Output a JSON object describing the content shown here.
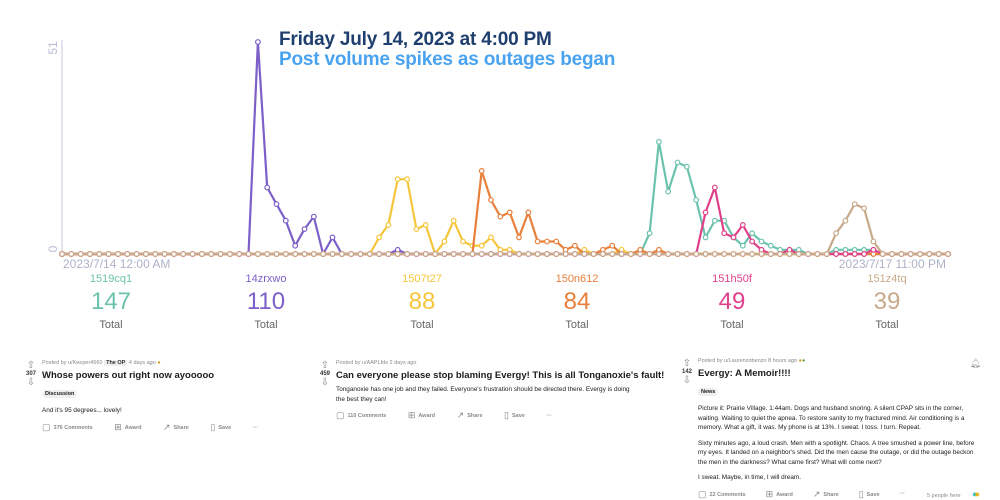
{
  "chart_data": {
    "type": "line",
    "annotation_title": "Friday July 14, 2023 at 4:00 PM",
    "annotation_subtitle": "Post volume spikes as outages began",
    "x_start_label": "2023/7/14 12:00 AM",
    "x_end_label": "2023/7/17 11:00 PM",
    "y_max_label": "51",
    "y_min_label": "0",
    "ylim": [
      0,
      51
    ],
    "grid": false,
    "series": [
      {
        "name": "1519cq1",
        "color": "#6cc3ad",
        "total": "147",
        "values": [
          0,
          0,
          0,
          0,
          0,
          0,
          0,
          0,
          0,
          0,
          0,
          0,
          0,
          0,
          0,
          0,
          0,
          0,
          0,
          0,
          0,
          0,
          0,
          0,
          0,
          0,
          0,
          0,
          0,
          0,
          0,
          0,
          0,
          0,
          0,
          0,
          0,
          0,
          0,
          0,
          0,
          0,
          0,
          0,
          0,
          0,
          0,
          0,
          0,
          0,
          0,
          0,
          0,
          0,
          0,
          0,
          0,
          0,
          0,
          0,
          0,
          0,
          0,
          5,
          27,
          15,
          22,
          21,
          13,
          4,
          8,
          8,
          4,
          2,
          5,
          3,
          2,
          1,
          1,
          1,
          0,
          0,
          0,
          1,
          1,
          1,
          1,
          1,
          0,
          0,
          0,
          0,
          0,
          0,
          0,
          0
        ]
      },
      {
        "name": "14zrxwo",
        "color": "#7c5fc8",
        "total": "110",
        "values": [
          0,
          0,
          0,
          0,
          0,
          0,
          0,
          0,
          0,
          0,
          0,
          0,
          0,
          0,
          0,
          0,
          0,
          0,
          0,
          0,
          0,
          51,
          16,
          12,
          8,
          2,
          6,
          9,
          0,
          4,
          0,
          0,
          0,
          0,
          0,
          0,
          1,
          0,
          0,
          0,
          0,
          0,
          0,
          0,
          0,
          0,
          0,
          0,
          0,
          0,
          0,
          0,
          0,
          0,
          0,
          0,
          0,
          0,
          0,
          0,
          0,
          0,
          0,
          0,
          0,
          0,
          0,
          0,
          0,
          0,
          0,
          0,
          0,
          0,
          0,
          0,
          0,
          0,
          0,
          0,
          0,
          0,
          0,
          0,
          0,
          0,
          0,
          0,
          0,
          0,
          0,
          0,
          0,
          0,
          0,
          0
        ]
      },
      {
        "name": "1507t27",
        "color": "#f5c63b",
        "total": "88",
        "values": [
          0,
          0,
          0,
          0,
          0,
          0,
          0,
          0,
          0,
          0,
          0,
          0,
          0,
          0,
          0,
          0,
          0,
          0,
          0,
          0,
          0,
          0,
          0,
          0,
          0,
          0,
          0,
          0,
          0,
          0,
          0,
          0,
          0,
          0,
          4,
          7,
          18,
          18,
          6,
          7,
          0,
          3,
          8,
          3,
          2,
          2,
          4,
          1,
          1,
          0,
          0,
          0,
          0,
          0,
          0,
          0,
          1,
          0,
          0,
          0,
          1,
          0,
          0,
          0,
          0,
          0,
          0,
          0,
          0,
          0,
          0,
          0,
          0,
          0,
          0,
          0,
          0,
          0,
          0,
          0,
          0,
          0,
          0,
          0,
          0,
          0,
          0,
          0,
          0,
          0,
          0,
          0,
          0,
          0,
          0,
          0
        ]
      },
      {
        "name": "150n612",
        "color": "#e8803c",
        "total": "84",
        "values": [
          0,
          0,
          0,
          0,
          0,
          0,
          0,
          0,
          0,
          0,
          0,
          0,
          0,
          0,
          0,
          0,
          0,
          0,
          0,
          0,
          0,
          0,
          0,
          0,
          0,
          0,
          0,
          0,
          0,
          0,
          0,
          0,
          0,
          0,
          0,
          0,
          0,
          0,
          0,
          0,
          0,
          0,
          0,
          0,
          0,
          20,
          13,
          9,
          10,
          4,
          10,
          3,
          3,
          3,
          1,
          2,
          0,
          0,
          1,
          2,
          0,
          0,
          1,
          0,
          1,
          0,
          0,
          0,
          0,
          0,
          0,
          0,
          0,
          0,
          0,
          0,
          0,
          0,
          0,
          0,
          0,
          0,
          0,
          0,
          0,
          0,
          0,
          0,
          0,
          0,
          0,
          0,
          0,
          0,
          0,
          0
        ]
      },
      {
        "name": "151h50f",
        "color": "#e0408a",
        "total": "49",
        "values": [
          0,
          0,
          0,
          0,
          0,
          0,
          0,
          0,
          0,
          0,
          0,
          0,
          0,
          0,
          0,
          0,
          0,
          0,
          0,
          0,
          0,
          0,
          0,
          0,
          0,
          0,
          0,
          0,
          0,
          0,
          0,
          0,
          0,
          0,
          0,
          0,
          0,
          0,
          0,
          0,
          0,
          0,
          0,
          0,
          0,
          0,
          0,
          0,
          0,
          0,
          0,
          0,
          0,
          0,
          0,
          0,
          0,
          0,
          0,
          0,
          0,
          0,
          0,
          0,
          0,
          0,
          0,
          0,
          0,
          10,
          16,
          5,
          4,
          7,
          3,
          1,
          0,
          0,
          1,
          0,
          0,
          0,
          0,
          0,
          0,
          0,
          0,
          1,
          0,
          0,
          0,
          0,
          0,
          0,
          0,
          0
        ]
      },
      {
        "name": "151z4tq",
        "color": "#c8a98a",
        "total": "39",
        "values": [
          0,
          0,
          0,
          0,
          0,
          0,
          0,
          0,
          0,
          0,
          0,
          0,
          0,
          0,
          0,
          0,
          0,
          0,
          0,
          0,
          0,
          0,
          0,
          0,
          0,
          0,
          0,
          0,
          0,
          0,
          0,
          0,
          0,
          0,
          0,
          0,
          0,
          0,
          0,
          0,
          0,
          0,
          0,
          0,
          0,
          0,
          0,
          0,
          0,
          0,
          0,
          0,
          0,
          0,
          0,
          0,
          0,
          0,
          0,
          0,
          0,
          0,
          0,
          0,
          0,
          0,
          0,
          0,
          0,
          0,
          0,
          0,
          0,
          0,
          0,
          0,
          0,
          0,
          0,
          0,
          0,
          0,
          0,
          5,
          8,
          12,
          11,
          3,
          0,
          0,
          0,
          0,
          0,
          0,
          0,
          0
        ]
      }
    ]
  },
  "stats": {
    "total_label": "Total"
  },
  "posts": [
    {
      "votes": "307",
      "author": "Posted by u/Keeper4560",
      "flair": "The OP",
      "time": "4 days ago",
      "title": "Whose powers out right now ayooooo",
      "tag": "Discussion",
      "paragraphs": [
        "And it's 95 degrees... lovely!"
      ],
      "comments": "376 Comments",
      "award": "Award",
      "share": "Share",
      "save": "Save"
    },
    {
      "votes": "459",
      "author": "Posted by u/AAPLfds",
      "time": "2 days ago",
      "title": "Can everyone please stop blaming Evergy! This is all Tonganoxie's fault!",
      "paragraphs": [
        "Tonganoxie has one job and they failed. Everyone's frustration should be directed there. Evergy is doing the best they can!"
      ],
      "comments": "110 Comments",
      "award": "Award",
      "share": "Share",
      "save": "Save"
    },
    {
      "votes": "142",
      "author": "Posted by u/Laurenzobenzo",
      "time": "8 hours ago",
      "title": "Evergy: A Memoir!!!!",
      "tag": "News",
      "paragraphs": [
        "Picture it: Prairie Village. 1:44am. Dogs and husband snoring. A silent CPAP sits in the corner, waiting. Waiting to quiet the apnea. To restore sanity to my fractured mind. Air conditioning is a memory. What a gift, it was. My phone is at 13%. I sweat. I toss. I turn. Repeat.",
        "Sixty minutes ago, a loud crash. Men with a spotlight. Chaos. A tree smushed a power line, before my eyes. It landed on a neighbor's shed. Did the men cause the outage, or did the outage beckon the men in the darkness? What came first? What will come next?",
        "I sweat. Maybe, in time, I will dream."
      ],
      "comments": "22 Comments",
      "award": "Award",
      "share": "Share",
      "save": "Save",
      "people_here": "5 people here"
    }
  ]
}
